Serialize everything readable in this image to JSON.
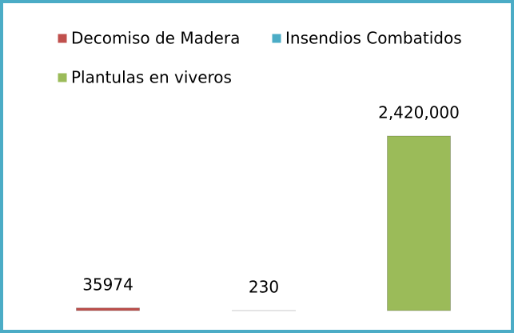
{
  "chart_data": {
    "type": "bar",
    "series": [
      {
        "name": "Decomiso de Madera",
        "color": "#c0504d",
        "values": [
          35974
        ],
        "value_labels": [
          "35974"
        ]
      },
      {
        "name": "Insendios Combatidos",
        "color": "#4bacc6",
        "values": [
          230
        ],
        "value_labels": [
          "230"
        ]
      },
      {
        "name": "Plantulas en viveros",
        "color": "#9bbb59",
        "values": [
          2420000
        ],
        "value_labels": [
          "2,420,000"
        ]
      }
    ],
    "legend": "top"
  }
}
